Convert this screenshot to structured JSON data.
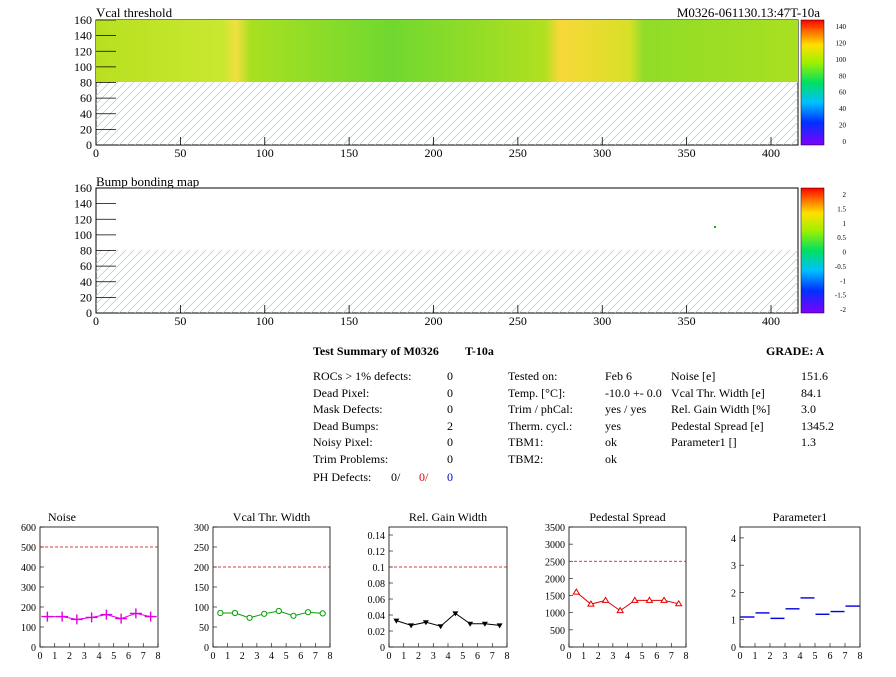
{
  "maps": [
    {
      "title": "Vcal threshold",
      "module_label": "M0326-061130.13:47T-10a",
      "x_ticks": [
        "0",
        "50",
        "100",
        "150",
        "200",
        "250",
        "300",
        "350",
        "400"
      ],
      "y_ticks": [
        "0",
        "20",
        "40",
        "60",
        "80",
        "100",
        "120",
        "140",
        "160"
      ],
      "z_ticks": [
        "140",
        "120",
        "100",
        "80",
        "60",
        "40",
        "20",
        "0"
      ]
    },
    {
      "title": "Bump bonding map",
      "x_ticks": [
        "0",
        "50",
        "100",
        "150",
        "200",
        "250",
        "300",
        "350",
        "400"
      ],
      "y_ticks": [
        "0",
        "20",
        "40",
        "60",
        "80",
        "100",
        "120",
        "140",
        "160"
      ],
      "z_ticks": [
        "2",
        "1.5",
        "1",
        "0.5",
        "0",
        "-0.5",
        "-1",
        "-1.5",
        "-2"
      ]
    }
  ],
  "summary": {
    "title": "Test Summary of M0326",
    "temp_label": "T-10a",
    "grade": "GRADE:  A",
    "defects": [
      {
        "label": "ROCs > 1% defects:",
        "value": "0"
      },
      {
        "label": "Dead Pixel:",
        "value": "0"
      },
      {
        "label": "Mask Defects:",
        "value": "0"
      },
      {
        "label": "Dead Bumps:",
        "value": "2"
      },
      {
        "label": "Noisy Pixel:",
        "value": "0"
      },
      {
        "label": "Trim Problems:",
        "value": "0"
      }
    ],
    "ph_defects": {
      "label": "PH Defects:",
      "v1": "0/",
      "v2": "0/",
      "v3": "0"
    },
    "conditions": [
      {
        "label": "Tested on:",
        "value": "Feb 6"
      },
      {
        "label": "Temp. [°C]:",
        "value": "-10.0 +- 0.0"
      },
      {
        "label": "Trim / phCal:",
        "value": "yes / yes"
      },
      {
        "label": "Therm. cycl.:",
        "value": "yes"
      },
      {
        "label": "TBM1:",
        "value": "ok"
      },
      {
        "label": "TBM2:",
        "value": "ok"
      }
    ],
    "parameters": [
      {
        "label": "Noise [e]",
        "value": "151.6"
      },
      {
        "label": "Vcal Thr. Width [e]",
        "value": "84.1"
      },
      {
        "label": "Rel. Gain Width [%]",
        "value": "3.0"
      },
      {
        "label": "Pedestal Spread [e]",
        "value": "1345.2"
      },
      {
        "label": "Parameter1 []",
        "value": "1.3"
      }
    ]
  },
  "chart_data": [
    {
      "type": "line",
      "title": "Noise",
      "x": [
        0.5,
        1.5,
        2.5,
        3.5,
        4.5,
        5.5,
        6.5,
        7.5
      ],
      "values": [
        152,
        152,
        138,
        148,
        162,
        142,
        168,
        152
      ],
      "ylim": [
        0,
        600
      ],
      "xlim": [
        0,
        8
      ],
      "y_ticks": [
        0,
        100,
        200,
        300,
        400,
        500,
        600
      ],
      "limit": 500,
      "color": "#e000e0",
      "marker": "plus"
    },
    {
      "type": "line",
      "title": "Vcal Thr. Width",
      "x": [
        0.5,
        1.5,
        2.5,
        3.5,
        4.5,
        5.5,
        6.5,
        7.5
      ],
      "values": [
        85,
        85,
        73,
        83,
        90,
        78,
        87,
        84
      ],
      "ylim": [
        0,
        300
      ],
      "xlim": [
        0,
        8
      ],
      "y_ticks": [
        0,
        50,
        100,
        150,
        200,
        250,
        300
      ],
      "limit": 200,
      "color": "#00a000",
      "marker": "circle"
    },
    {
      "type": "line",
      "title": "Rel. Gain Width",
      "x": [
        0.5,
        1.5,
        2.5,
        3.5,
        4.5,
        5.5,
        6.5,
        7.5
      ],
      "values": [
        0.033,
        0.027,
        0.031,
        0.026,
        0.042,
        0.029,
        0.029,
        0.027
      ],
      "ylim": [
        0,
        0.15
      ],
      "xlim": [
        0,
        8
      ],
      "y_ticks": [
        0,
        0.02,
        0.04,
        0.06,
        0.08,
        0.1,
        0.12,
        0.14
      ],
      "limit": 0.1,
      "color": "#000000",
      "marker": "triangle-down"
    },
    {
      "type": "line",
      "title": "Pedestal Spread",
      "x": [
        0.5,
        1.5,
        2.5,
        3.5,
        4.5,
        5.5,
        6.5,
        7.5
      ],
      "values": [
        1600,
        1250,
        1360,
        1060,
        1360,
        1360,
        1360,
        1260
      ],
      "ylim": [
        0,
        3500
      ],
      "xlim": [
        0,
        8
      ],
      "y_ticks": [
        0,
        500,
        1000,
        1500,
        2000,
        2500,
        3000,
        3500
      ],
      "limit": 2500,
      "color": "#e00000",
      "marker": "triangle-up"
    },
    {
      "type": "scatter",
      "title": "Parameter1",
      "x": [
        0.5,
        1.5,
        2.5,
        3.5,
        4.5,
        5.5,
        6.5,
        7.5
      ],
      "values": [
        1.1,
        1.25,
        1.05,
        1.4,
        1.8,
        1.2,
        1.3,
        1.5
      ],
      "ylim": [
        0,
        4.4
      ],
      "xlim": [
        0,
        8
      ],
      "y_ticks": [
        0,
        1,
        2,
        3,
        4
      ],
      "color": "#0000e0",
      "marker": "hline"
    }
  ]
}
